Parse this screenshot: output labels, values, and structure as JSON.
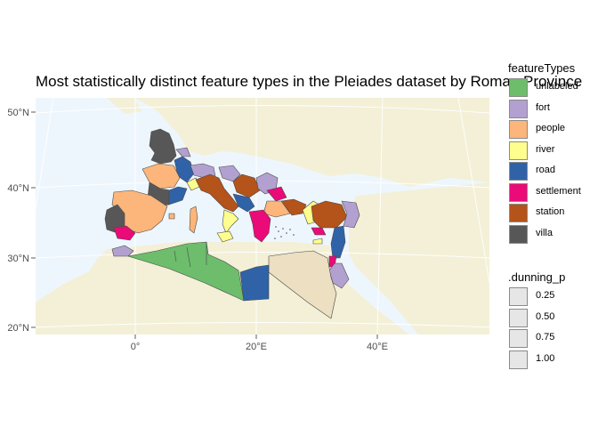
{
  "title": "Most statistically distinct feature types in the Pleiades dataset by Roman Province",
  "map": {
    "x_ticks": [
      "0°",
      "20°E",
      "40°E"
    ],
    "y_ticks": [
      "50°N",
      "40°N",
      "30°N",
      "20°N"
    ],
    "colors": {
      "ocean": "#eef6fd",
      "land": "#f3f0d7",
      "graticule": "#ffffff",
      "border": "#4a4a4a"
    }
  },
  "legend_feature_types": {
    "title": "featureTypes",
    "items": [
      {
        "label": "unlabeled",
        "color": "#6dbd6c"
      },
      {
        "label": "fort",
        "color": "#b2a1d0"
      },
      {
        "label": "people",
        "color": "#fcb57a"
      },
      {
        "label": "river",
        "color": "#fefe8e"
      },
      {
        "label": "road",
        "color": "#3062a8"
      },
      {
        "label": "settlement",
        "color": "#ea0a78"
      },
      {
        "label": "station",
        "color": "#b4531a"
      },
      {
        "label": "villa",
        "color": "#575757"
      }
    ]
  },
  "legend_dunning": {
    "title": ".dunning_p",
    "items": [
      {
        "label": "0.25"
      },
      {
        "label": "0.50"
      },
      {
        "label": "0.75"
      },
      {
        "label": "1.00"
      }
    ]
  },
  "egypt_color": "#ecdfc2"
}
